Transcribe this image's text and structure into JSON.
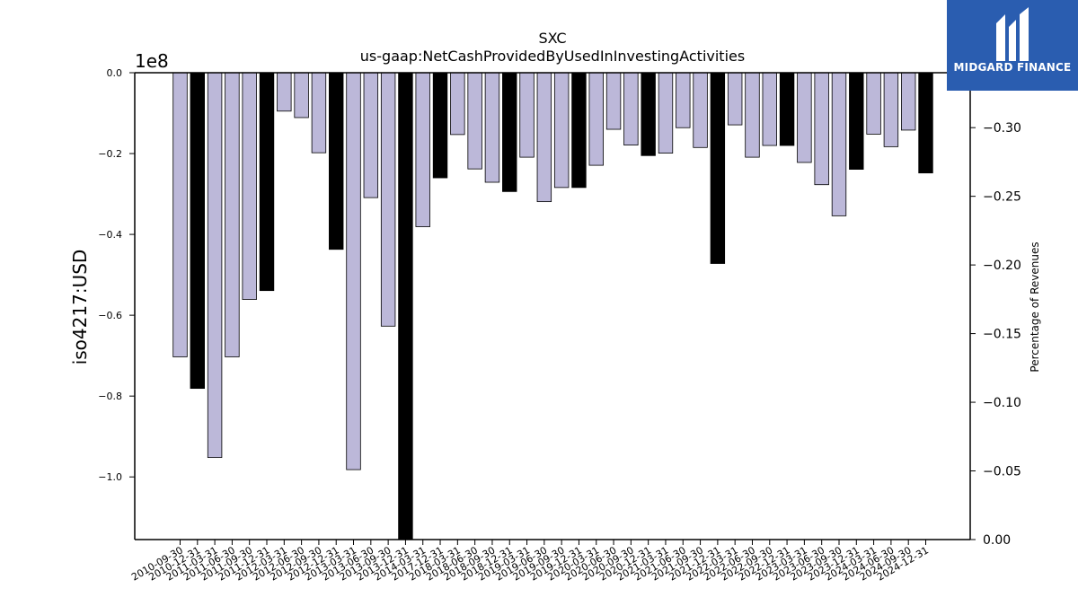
{
  "chart_data": {
    "type": "bar",
    "title": "SXC",
    "subtitle": "us-gaap:NetCashProvidedByUsedInInvestingActivities",
    "ylabel": "iso4217:USD",
    "ylabel_right": "Percentage of Revenues",
    "y_scale_label": "1e8",
    "ylim": [
      -1.155,
      0.0
    ],
    "ylim_right": [
      0.0,
      -0.34
    ],
    "yticks": [
      0.0,
      -0.2,
      -0.4,
      -0.6,
      -0.8,
      -1.0
    ],
    "ytick_labels": [
      "0.0",
      "−0.2",
      "−0.4",
      "−0.6",
      "−0.8",
      "−1.0"
    ],
    "yticks_right": [
      -0.3,
      -0.25,
      -0.2,
      -0.15,
      -0.1,
      -0.05,
      0.0
    ],
    "ytick_labels_right": [
      "−0.30",
      "−0.25",
      "−0.20",
      "−0.15",
      "−0.10",
      "−0.05",
      "0.00"
    ],
    "categories": [
      "2010-09-30",
      "2010-12-31",
      "2011-03-31",
      "2011-06-30",
      "2011-09-30",
      "2011-12-31",
      "2012-03-31",
      "2012-06-30",
      "2012-09-30",
      "2012-12-31",
      "2013-03-31",
      "2013-06-30",
      "2013-09-30",
      "2013-12-31",
      "2014-03-31",
      "2017-12-31",
      "2018-03-31",
      "2018-06-30",
      "2018-09-30",
      "2018-12-31",
      "2019-03-31",
      "2019-06-30",
      "2019-09-30",
      "2019-12-31",
      "2020-03-31",
      "2020-06-30",
      "2020-09-30",
      "2020-12-31",
      "2021-03-31",
      "2021-06-30",
      "2021-09-30",
      "2021-12-31",
      "2022-03-31",
      "2022-06-30",
      "2022-09-30",
      "2022-12-31",
      "2023-03-31",
      "2023-06-30",
      "2023-09-30",
      "2023-12-31",
      "2024-03-31",
      "2024-06-30",
      "2024-09-30",
      "2024-12-31"
    ],
    "values": [
      -0.703,
      -0.781,
      -0.952,
      -0.703,
      -0.561,
      -0.539,
      -0.095,
      -0.111,
      -0.198,
      -0.437,
      -0.982,
      -0.309,
      -0.627,
      -1.155,
      -0.381,
      -0.26,
      -0.153,
      -0.238,
      -0.271,
      -0.294,
      -0.209,
      -0.319,
      -0.284,
      -0.284,
      -0.229,
      -0.14,
      -0.179,
      -0.205,
      -0.199,
      -0.136,
      -0.185,
      -0.472,
      -0.129,
      -0.209,
      -0.18,
      -0.18,
      -0.222,
      -0.277,
      -0.354,
      -0.239,
      -0.152,
      -0.183,
      -0.142,
      -0.248
    ],
    "highlighted": [
      false,
      true,
      false,
      false,
      false,
      true,
      false,
      false,
      false,
      true,
      false,
      false,
      false,
      true,
      false,
      true,
      false,
      false,
      false,
      true,
      false,
      false,
      false,
      true,
      false,
      false,
      false,
      true,
      false,
      false,
      false,
      true,
      false,
      false,
      false,
      true,
      false,
      false,
      false,
      true,
      false,
      false,
      false,
      true
    ],
    "colors": {
      "bar": "#bcb8d9",
      "highlight": "#000000",
      "edge": "#000000"
    },
    "grid": false,
    "legend": "none"
  },
  "logo": {
    "text": "MIDGARD FINANCE",
    "background": "#2a5db0"
  }
}
